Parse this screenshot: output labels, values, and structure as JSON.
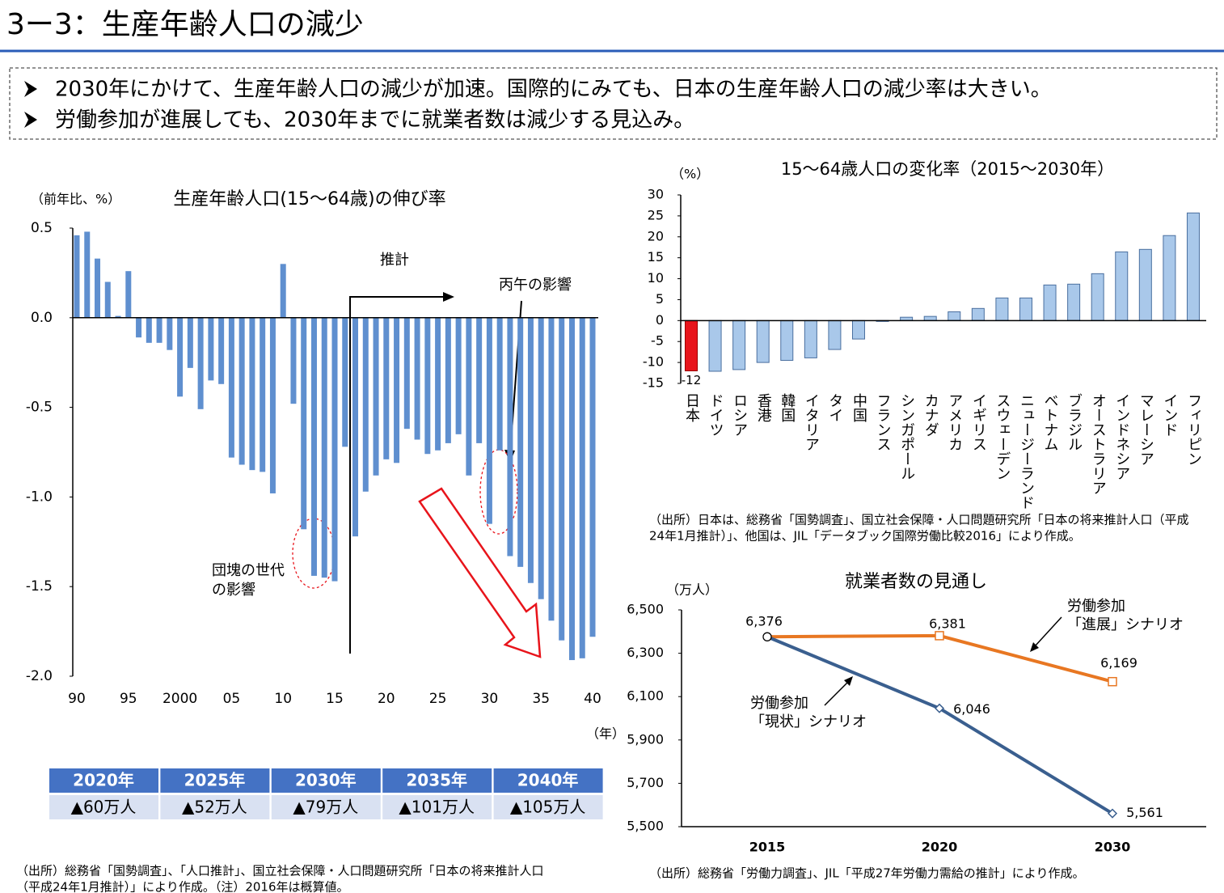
{
  "header": {
    "title": "3ー3：生産年齢人口の減少"
  },
  "bullets": [
    "2030年にかけて、生産年齢人口の減少が加速。国際的にみても、日本の生産年齢人口の減少率は大きい。",
    "労働参加が進展しても、2030年までに就業者数は減少する見込み。"
  ],
  "table": {
    "header": [
      "2020年",
      "2025年",
      "2030年",
      "2035年",
      "2040年"
    ],
    "rows": [
      [
        "▲60万人",
        "▲52万人",
        "▲79万人",
        "▲101万人",
        "▲105万人"
      ]
    ]
  },
  "notes": [
    [
      "（出所）総務省「国勢調査」、「人口推計」、国立社会保障・人口問題研究所「日本の将来推計人口",
      "（平成24年1月推計）」により作成。（注）2016年は概算値。"
    ],
    [
      "（出所）日本は、総務省「国勢調査」、国立社会保障・人口問題研究所「日本の将来推計人口（平成",
      "24年1月推計）」、他国は、JIL「データブック国際労働比較2016」により作成。"
    ],
    [
      "（出所）総務省「労働力調査」、JIL「平成27年労働力需給の推計」により作成。"
    ]
  ],
  "chart_data": [
    {
      "type": "bar",
      "title": "生産年齢人口(15～64歳)の伸び率",
      "y_label": "（前年比、%）",
      "x_label": "（年）",
      "annotations": [
        "推計",
        "丙午の影響",
        "団塊の世代",
        "の影響"
      ],
      "categories": [
        "90",
        null,
        null,
        null,
        null,
        "95",
        null,
        null,
        null,
        null,
        "2000",
        null,
        null,
        null,
        null,
        "05",
        null,
        null,
        null,
        null,
        "10",
        null,
        null,
        null,
        null,
        "15",
        null,
        null,
        null,
        null,
        "20",
        null,
        null,
        null,
        null,
        "25",
        null,
        null,
        null,
        null,
        "30",
        null,
        null,
        null,
        null,
        "35",
        null,
        null,
        null,
        null,
        "40"
      ],
      "values": [
        0.46,
        0.48,
        0.33,
        0.2,
        0.01,
        0.26,
        -0.11,
        -0.14,
        -0.14,
        -0.18,
        -0.44,
        -0.28,
        -0.51,
        -0.35,
        -0.37,
        -0.78,
        -0.82,
        -0.85,
        -0.86,
        -0.98,
        0.3,
        -0.48,
        -1.18,
        -1.44,
        -1.45,
        -1.47,
        -0.72,
        -1.22,
        -0.97,
        -0.88,
        -0.79,
        -0.81,
        -0.62,
        -0.68,
        -0.76,
        -0.74,
        -0.7,
        -0.65,
        -0.88,
        -0.7,
        -1.15,
        -0.74,
        -1.33,
        -1.39,
        -1.48,
        -1.57,
        -1.69,
        -1.8,
        -1.91,
        -1.9,
        -1.78
      ],
      "color": "#5f8fcf",
      "ylim": [
        -2.0,
        0.5
      ],
      "yticks": [
        0.5,
        {
          "value": 0,
          "label": "0.0"
        },
        -0.5,
        {
          "value": -1,
          "label": "-1.0"
        },
        -1.5,
        {
          "value": -2,
          "label": "-2.0"
        }
      ]
    },
    {
      "type": "bar",
      "title": "15～64歳人口の変化率（2015～2030年）",
      "y_label": "（%）",
      "categories": [
        "日本",
        "ドイツ",
        "ロシア",
        "香港",
        "韓国",
        "イタリア",
        "タイ",
        "中国",
        "フランス",
        "シンガポール",
        "カナダ",
        "アメリカ",
        "イギリス",
        "スウェーデン",
        "ニュージーランド",
        "ベトナム",
        "ブラジル",
        "オーストラリア",
        "インドネシア",
        "マレーシア",
        "インド",
        "フィリピン"
      ],
      "values": [
        -12,
        -12.1,
        -11.7,
        -10.0,
        -9.5,
        -8.9,
        -6.9,
        -4.4,
        -0.2,
        0.8,
        1.0,
        2.1,
        2.9,
        5.4,
        5.4,
        8.5,
        8.7,
        11.2,
        16.4,
        17.0,
        20.3,
        25.7
      ],
      "color": "#a9c8ea",
      "highlight_index": 0,
      "highlight_color": "#e8141b",
      "ylim": [
        -15,
        30
      ],
      "yticks": [
        30,
        25,
        20,
        15,
        10,
        5,
        0,
        -5,
        -10,
        -15
      ]
    },
    {
      "type": "line",
      "title": "就業者数の見通し",
      "y_label": "（万人）",
      "categories": [
        "2015",
        "2020",
        "2030"
      ],
      "series": [
        {
          "name": [
            "労働参加",
            "「進展」シナリオ"
          ],
          "color": "#e87722",
          "marker": "square",
          "values": [
            6376,
            6381,
            6169
          ],
          "value_labels": [
            null,
            "6,381",
            "6,169"
          ]
        },
        {
          "name": [
            "労働参加",
            "「現状」シナリオ"
          ],
          "color": "#3a5f8f",
          "marker": "diamond",
          "values": [
            6376,
            6046,
            5561
          ],
          "value_labels": [
            "6,376",
            "6,046",
            "5,561"
          ]
        }
      ],
      "ylim": [
        5500,
        6500
      ],
      "yticks": [
        {
          "value": 6500,
          "label": "6,500"
        },
        {
          "value": 6300,
          "label": "6,300"
        },
        {
          "value": 6100,
          "label": "6,100"
        },
        {
          "value": 5900,
          "label": "5,900"
        },
        {
          "value": 5700,
          "label": "5,700"
        },
        {
          "value": 5500,
          "label": "5,500"
        }
      ]
    }
  ]
}
